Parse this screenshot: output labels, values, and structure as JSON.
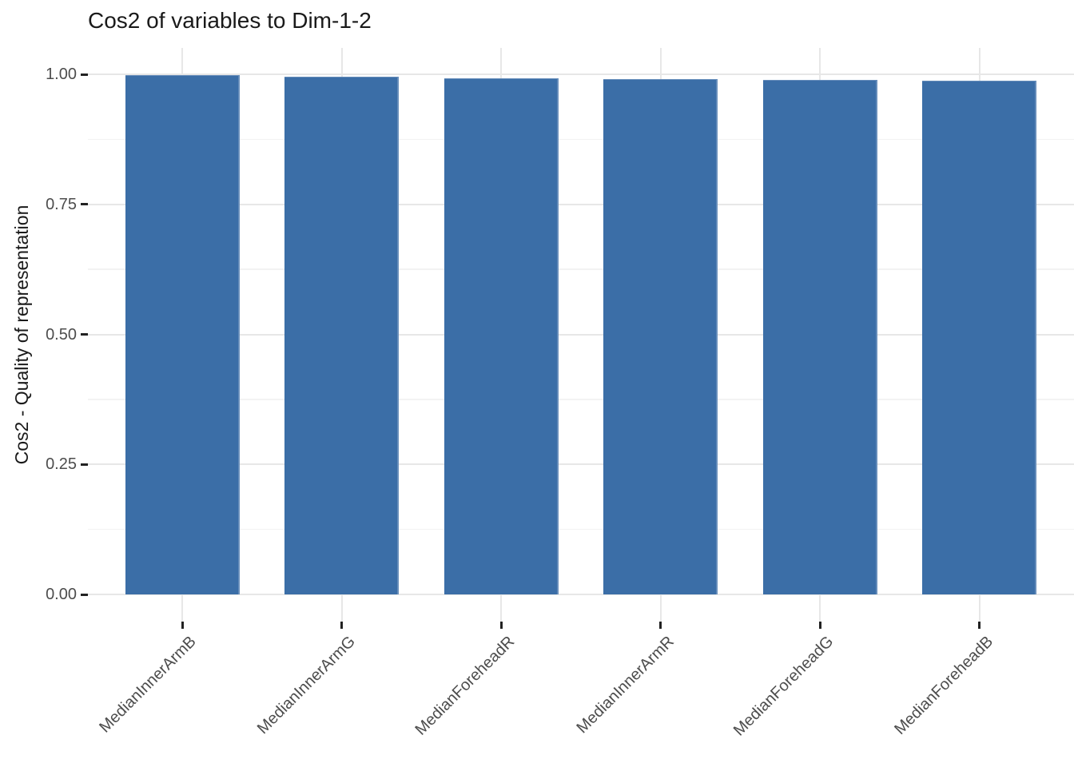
{
  "title": "Cos2 of variables to Dim-1-2",
  "colors": {
    "bar_fill": "#3b6ea7",
    "grid_major": "#e7e7e7",
    "grid_minor": "#f3f3f3",
    "tick_label": "#4d4d4d",
    "tick_mark": "#222222",
    "title_text": "#1a1a1a",
    "background": "#ffffff"
  },
  "chart_data": {
    "type": "bar",
    "title": "Cos2 of variables to Dim-1-2",
    "xlabel": "",
    "ylabel": "Cos2 - Quality of representation",
    "categories": [
      "MedianInnerArmB",
      "MedianInnerArmG",
      "MedianForeheadR",
      "MedianInnerArmR",
      "MedianForeheadG",
      "MedianForeheadB"
    ],
    "values": [
      0.998,
      0.996,
      0.992,
      0.991,
      0.99,
      0.987
    ],
    "bar_color": "#3b6ea7",
    "ylim": [
      0,
      1.05
    ],
    "y_ticks": [
      0,
      0.25,
      0.5,
      0.75,
      1.0
    ],
    "y_tick_labels": [
      "0.00",
      "0.25",
      "0.50",
      "0.75",
      "1.00"
    ],
    "y_minor_ticks": [
      0.125,
      0.375,
      0.625,
      0.875
    ],
    "grid": true,
    "legend_position": "none",
    "x_label_angle": 45
  }
}
